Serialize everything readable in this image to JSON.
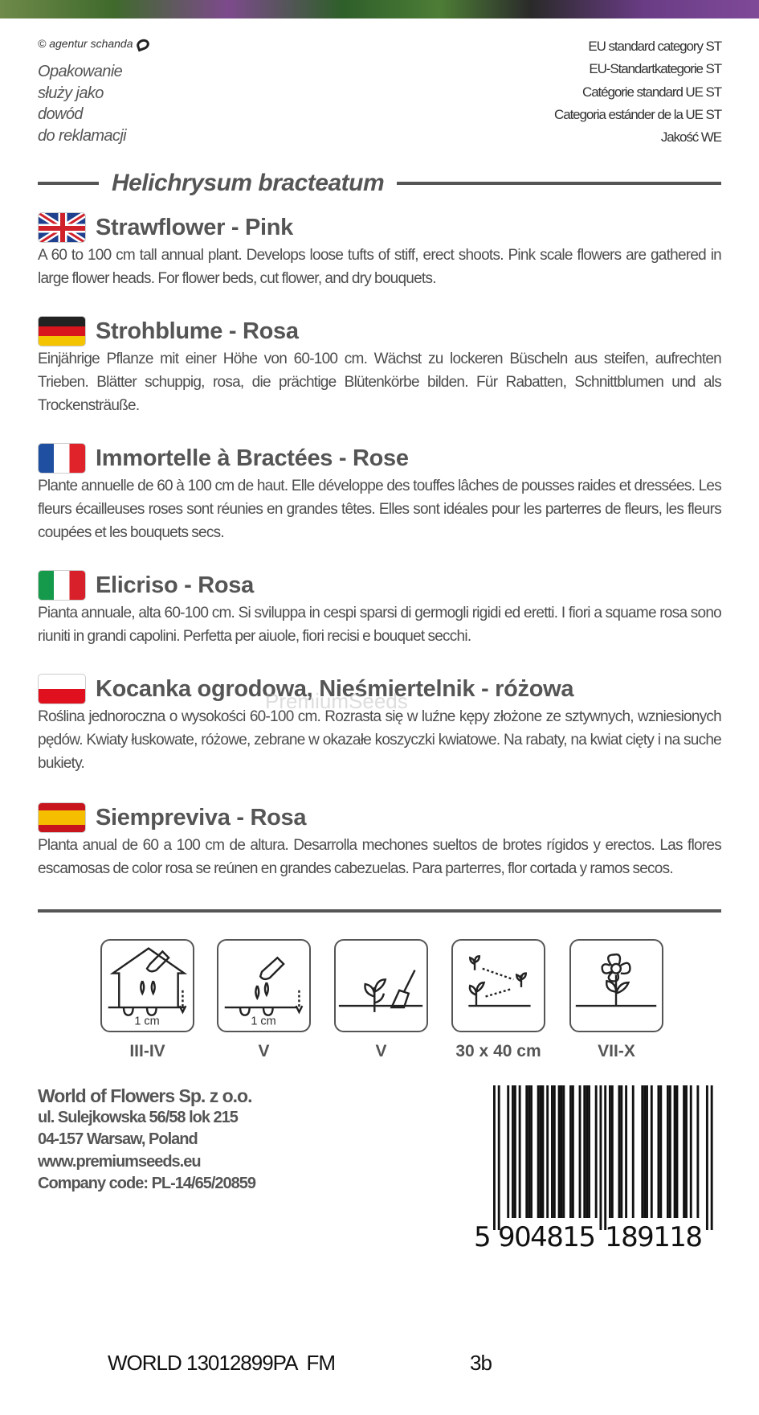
{
  "header": {
    "copyright": "© agentur schanda",
    "complaint_note": [
      "Opakowanie",
      "służy jako",
      "dowód",
      "do reklamacji"
    ],
    "eu_category": [
      "EU standard category ST",
      "EU-Standartkategorie ST",
      "Catégorie standard UE ST",
      "Categoria estánder de la UE ST",
      "Jakość WE"
    ]
  },
  "latin_name": "Helichrysum bracteatum",
  "watermark": "PremiumSeeds",
  "sections": [
    {
      "lang": "en",
      "title": "Strawflower - Pink",
      "body": "A 60 to 100 cm tall annual plant. Develops loose tufts of stiff, erect shoots. Pink scale flowers are gathered in large flower heads. For flower beds, cut flower, and dry bouquets."
    },
    {
      "lang": "de",
      "title": "Strohblume - Rosa",
      "body": "Einjährige Pflanze mit einer Höhe von 60-100 cm. Wächst zu lockeren Büscheln aus steifen, aufrechten Trieben. Blätter schuppig, rosa, die prächtige Blütenkörbe bilden. Für Rabatten, Schnittblumen und als Trockensträuße."
    },
    {
      "lang": "fr",
      "title": "Immortelle à Bractées - Rose",
      "body": "Plante annuelle de 60 à 100 cm de haut. Elle développe des touffes lâches de pousses raides et dressées. Les fleurs écailleuses roses sont réunies en grandes têtes. Elles sont idéales pour les parterres de fleurs, les fleurs coupées et les bouquets secs."
    },
    {
      "lang": "it",
      "title": "Elicriso - Rosa",
      "body": "Pianta annuale, alta 60-100 cm. Si sviluppa in cespi sparsi di germogli rigidi ed eretti. I fiori a squame rosa sono riuniti in grandi capolini. Perfetta per aiuole, fiori recisi e bouquet secchi."
    },
    {
      "lang": "pl",
      "title": "Kocanka ogrodowa, Nieśmiertelnik - różowa",
      "body": "Roślina jednoroczna o wysokości 60-100 cm. Rozrasta się w luźne kępy złożone ze sztywnych, wzniesionych pędów. Kwiaty łuskowate, różowe, zebrane w okazałe koszyczki kwiatowe. Na rabaty, na kwiat cięty i na suche bukiety."
    },
    {
      "lang": "es",
      "title": "Siempreviva - Rosa",
      "body": "Planta anual de 60 a 100 cm de altura. Desarrolla mechones sueltos de brotes rígidos y erectos. Las flores escamosas de color rosa se reúnen en grandes cabezuelas. Para parterres, flor cortada y ramos secos."
    }
  ],
  "icons": [
    {
      "icon": "greenhouse-sowing-icon",
      "depth": "1 cm",
      "label": "III-IV"
    },
    {
      "icon": "outdoor-sowing-icon",
      "depth": "1 cm",
      "label": "V"
    },
    {
      "icon": "transplant-icon",
      "label": "V"
    },
    {
      "icon": "spacing-icon",
      "label": "30 x 40 cm"
    },
    {
      "icon": "flowering-icon",
      "label": "VII-X"
    }
  ],
  "company": {
    "name": "World of Flowers Sp. z o.o.",
    "street": "ul. Sulejkowska 56/58 lok 215",
    "city": "04-157 Warsaw, Poland",
    "website": "www.premiumseeds.eu",
    "code": "Company code: PL-14/65/20859"
  },
  "barcode": {
    "digits": "5904815189118",
    "first": "5",
    "left": "904815",
    "right": "189118"
  },
  "footer": {
    "code": "WORLD 13012899PA  FM",
    "variant": "3b"
  },
  "colors": {
    "text": "#4d4d4d",
    "rule": "#555555"
  }
}
